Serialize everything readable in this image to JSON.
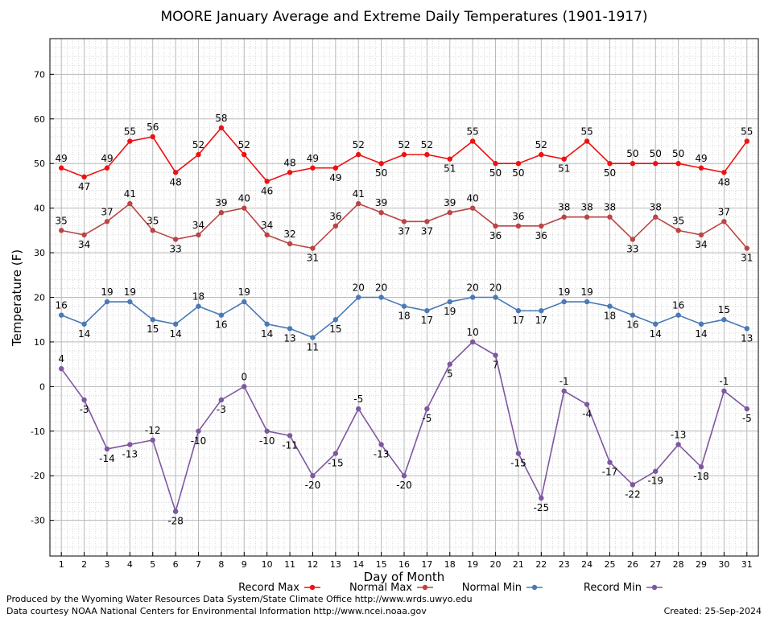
{
  "chart_data": {
    "type": "line",
    "title": "MOORE January Average and Extreme Daily Temperatures (1901-1917)",
    "xlabel": "Day of Month",
    "ylabel": "Temperature (F)",
    "xlim": [
      0.5,
      31.5
    ],
    "ylim": [
      -38,
      78
    ],
    "yticks": [
      -30,
      -20,
      -10,
      0,
      10,
      20,
      30,
      40,
      50,
      60,
      70
    ],
    "x": [
      1,
      2,
      3,
      4,
      5,
      6,
      7,
      8,
      9,
      10,
      11,
      12,
      13,
      14,
      15,
      16,
      17,
      18,
      19,
      20,
      21,
      22,
      23,
      24,
      25,
      26,
      27,
      28,
      29,
      30,
      31
    ],
    "grid": true,
    "legend_position": "bottom",
    "series": [
      {
        "name": "Record Max",
        "color": "#ee1111",
        "values": [
          49,
          47,
          49,
          55,
          56,
          48,
          52,
          58,
          52,
          46,
          48,
          49,
          49,
          52,
          50,
          52,
          52,
          51,
          55,
          50,
          50,
          52,
          51,
          55,
          50,
          50,
          50,
          50,
          49,
          48,
          55
        ]
      },
      {
        "name": "Normal Max",
        "color": "#bb4444",
        "values": [
          35,
          34,
          37,
          41,
          35,
          33,
          34,
          39,
          40,
          34,
          32,
          31,
          36,
          41,
          39,
          37,
          37,
          39,
          40,
          36,
          36,
          36,
          38,
          38,
          38,
          33,
          38,
          35,
          34,
          37,
          31
        ]
      },
      {
        "name": "Normal Min",
        "color": "#4a7ab5",
        "values": [
          16,
          14,
          19,
          19,
          15,
          14,
          18,
          16,
          19,
          14,
          13,
          11,
          15,
          20,
          20,
          18,
          17,
          19,
          20,
          20,
          17,
          17,
          19,
          19,
          18,
          16,
          14,
          16,
          14,
          15,
          13
        ]
      },
      {
        "name": "Record Min",
        "color": "#7e57a0",
        "values": [
          4,
          -3,
          -14,
          -13,
          -12,
          -28,
          -10,
          -3,
          0,
          -10,
          -11,
          -20,
          -15,
          -5,
          -13,
          -20,
          -5,
          5,
          10,
          7,
          -15,
          -25,
          -1,
          -4,
          -17,
          -22,
          -19,
          -13,
          -18,
          -1,
          -5
        ]
      }
    ]
  },
  "footer": {
    "produced_by": "Produced by the Wyoming Water Resources Data System/State Climate Office http://www.wrds.uwyo.edu",
    "data_courtesy": "Data courtesy NOAA National Centers for Environmental Information http://www.ncei.noaa.gov",
    "created": "Created:  25-Sep-2024"
  }
}
